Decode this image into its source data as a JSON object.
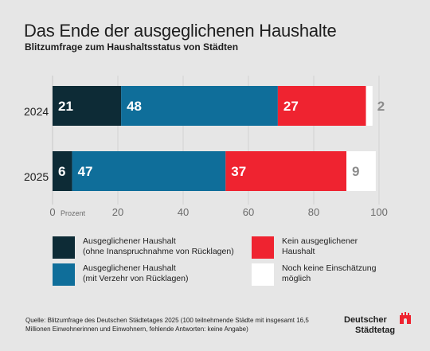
{
  "title": "Das Ende der ausgeglichenen Haushalte",
  "subtitle": "Blitzumfrage zum Haushaltsstatus von Städten",
  "legend": [
    {
      "line1": "Ausgeglichener Haushalt",
      "line2": "(ohne Inanspruchnahme von Rücklagen)",
      "color": "#0d2b36"
    },
    {
      "line1": "Kein ausgeglichener",
      "line2": "Haushalt",
      "color": "#ef2330"
    },
    {
      "line1": "Ausgeglichener Haushalt",
      "line2": "(mit Verzehr von Rücklagen)",
      "color": "#0f6e9a"
    },
    {
      "line1": "Noch keine Einschätzung",
      "line2": "möglich",
      "color": "#ffffff"
    }
  ],
  "source": "Quelle: Blitzumfrage des Deutschen Städtetages 2025 (100 teilnehmende Städte mit insgesamt 16,5 Millionen Einwohnerinnen und Einwohnern, fehlende Antworten: keine Angabe)",
  "logo": {
    "line1": "Deutscher",
    "line2": "Städtetag",
    "accent": "#ef2330"
  },
  "chart_data": {
    "type": "bar",
    "orientation": "horizontal",
    "stacked": true,
    "categories": [
      "2024",
      "2025"
    ],
    "series": [
      {
        "name": "Ausgeglichener Haushalt (ohne Inanspruchnahme von Rücklagen)",
        "values": [
          21,
          6
        ],
        "color": "#0d2b36",
        "label_color": "#ffffff"
      },
      {
        "name": "Ausgeglichener Haushalt (mit Verzehr von Rücklagen)",
        "values": [
          48,
          47
        ],
        "color": "#0f6e9a",
        "label_color": "#ffffff"
      },
      {
        "name": "Kein ausgeglichener Haushalt",
        "values": [
          27,
          37
        ],
        "color": "#ef2330",
        "label_color": "#ffffff"
      },
      {
        "name": "Noch keine Einschätzung möglich",
        "values": [
          2,
          9
        ],
        "color": "#ffffff",
        "label_color": "#8c8c8c"
      }
    ],
    "xlim": [
      0,
      100
    ],
    "xticks": [
      "0",
      "20",
      "40",
      "60",
      "80",
      "100"
    ],
    "xunit": "Prozent",
    "grid": true
  }
}
